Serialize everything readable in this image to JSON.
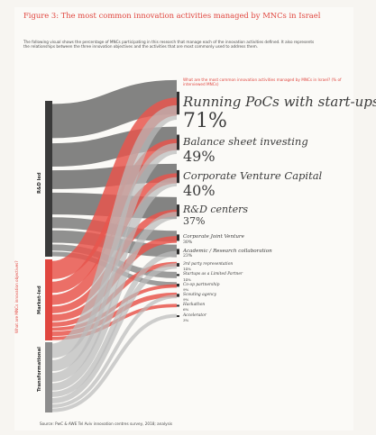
{
  "figure": {
    "title": "Figure 3: The most common innovation activities managed by MNCs in Israel",
    "intro": "The following visual shows the percentage of MNCs participating in this research that manage each of the innovation activities defined. It also represents the relationships between the three innovation objectives and the activities that are most commonly used to address them.",
    "right_note": "What are the most common innovation activities managed by MNCs in Israel? (% of interviewed MNCs)",
    "vertical_note": "What are MNCs innovation objectives?",
    "source": "Source: PwC & AWE Tel Aviv innovation centres survey, 2018; analysis"
  },
  "sources": [
    {
      "label": "R&D led"
    },
    {
      "label": "Market-led"
    },
    {
      "label": "Transformational"
    }
  ],
  "activities": [
    {
      "name": "Running PoCs with start-ups",
      "pct": "71%",
      "tier": 1
    },
    {
      "name": "Balance sheet investing",
      "pct": "49%",
      "tier": 2
    },
    {
      "name": "Corporate Venture Capital",
      "pct": "40%",
      "tier": 2
    },
    {
      "name": "R&D centers",
      "pct": "37%",
      "tier": 3
    },
    {
      "name": "Corporate Joint Venture",
      "pct": "30%",
      "tier": 4
    },
    {
      "name": "Academic / Research collaboration",
      "pct": "23%",
      "tier": 4
    },
    {
      "name": "3rd party representation",
      "pct": "14%",
      "tier": 5
    },
    {
      "name": "Startups as a Limited Partner",
      "pct": "14%",
      "tier": 5
    },
    {
      "name": "Co-op partnership",
      "pct": "9%",
      "tier": 5
    },
    {
      "name": "Scouting agency",
      "pct": "9%",
      "tier": 5
    },
    {
      "name": "Hackathon",
      "pct": "6%",
      "tier": 5
    },
    {
      "name": "Accelerator",
      "pct": "3%",
      "tier": 5
    }
  ],
  "flows": [
    {
      "s": 0,
      "t": 0,
      "w": 22,
      "c": "#555555"
    },
    {
      "s": 0,
      "t": 1,
      "w": 15,
      "c": "#555555"
    },
    {
      "s": 0,
      "t": 2,
      "w": 12,
      "c": "#555555"
    },
    {
      "s": 0,
      "t": 3,
      "w": 14,
      "c": "#555555"
    },
    {
      "s": 0,
      "t": 4,
      "w": 7,
      "c": "#666666"
    },
    {
      "s": 0,
      "t": 5,
      "w": 8,
      "c": "#666666"
    },
    {
      "s": 0,
      "t": 7,
      "w": 4,
      "c": "#777777"
    },
    {
      "s": 0,
      "t": 8,
      "w": 3,
      "c": "#777777"
    },
    {
      "s": 1,
      "t": 0,
      "w": 16,
      "c": "#e8564e"
    },
    {
      "s": 1,
      "t": 1,
      "w": 10,
      "c": "#e8564e"
    },
    {
      "s": 1,
      "t": 2,
      "w": 9,
      "c": "#e8564e"
    },
    {
      "s": 1,
      "t": 3,
      "w": 6,
      "c": "#e8564e"
    },
    {
      "s": 1,
      "t": 4,
      "w": 6,
      "c": "#e8564e"
    },
    {
      "s": 1,
      "t": 6,
      "w": 4,
      "c": "#e8564e"
    },
    {
      "s": 1,
      "t": 8,
      "w": 3,
      "c": "#e8564e"
    },
    {
      "s": 1,
      "t": 9,
      "w": 4,
      "c": "#e8564e"
    },
    {
      "s": 1,
      "t": 10,
      "w": 3,
      "c": "#e8564e"
    },
    {
      "s": 2,
      "t": 0,
      "w": 8,
      "c": "#bbbbbb"
    },
    {
      "s": 2,
      "t": 1,
      "w": 6,
      "c": "#bbbbbb"
    },
    {
      "s": 2,
      "t": 2,
      "w": 5,
      "c": "#bbbbbb"
    },
    {
      "s": 2,
      "t": 3,
      "w": 4,
      "c": "#bbbbbb"
    },
    {
      "s": 2,
      "t": 5,
      "w": 3,
      "c": "#bbbbbb"
    },
    {
      "s": 2,
      "t": 6,
      "w": 3,
      "c": "#bbbbbb"
    },
    {
      "s": 2,
      "t": 9,
      "w": 2,
      "c": "#bbbbbb"
    },
    {
      "s": 2,
      "t": 11,
      "w": 2,
      "c": "#bbbbbb"
    }
  ],
  "colors": {
    "accent_red": "#e0463f",
    "dark_grey": "#555555",
    "light_grey": "#bbbbbb"
  }
}
